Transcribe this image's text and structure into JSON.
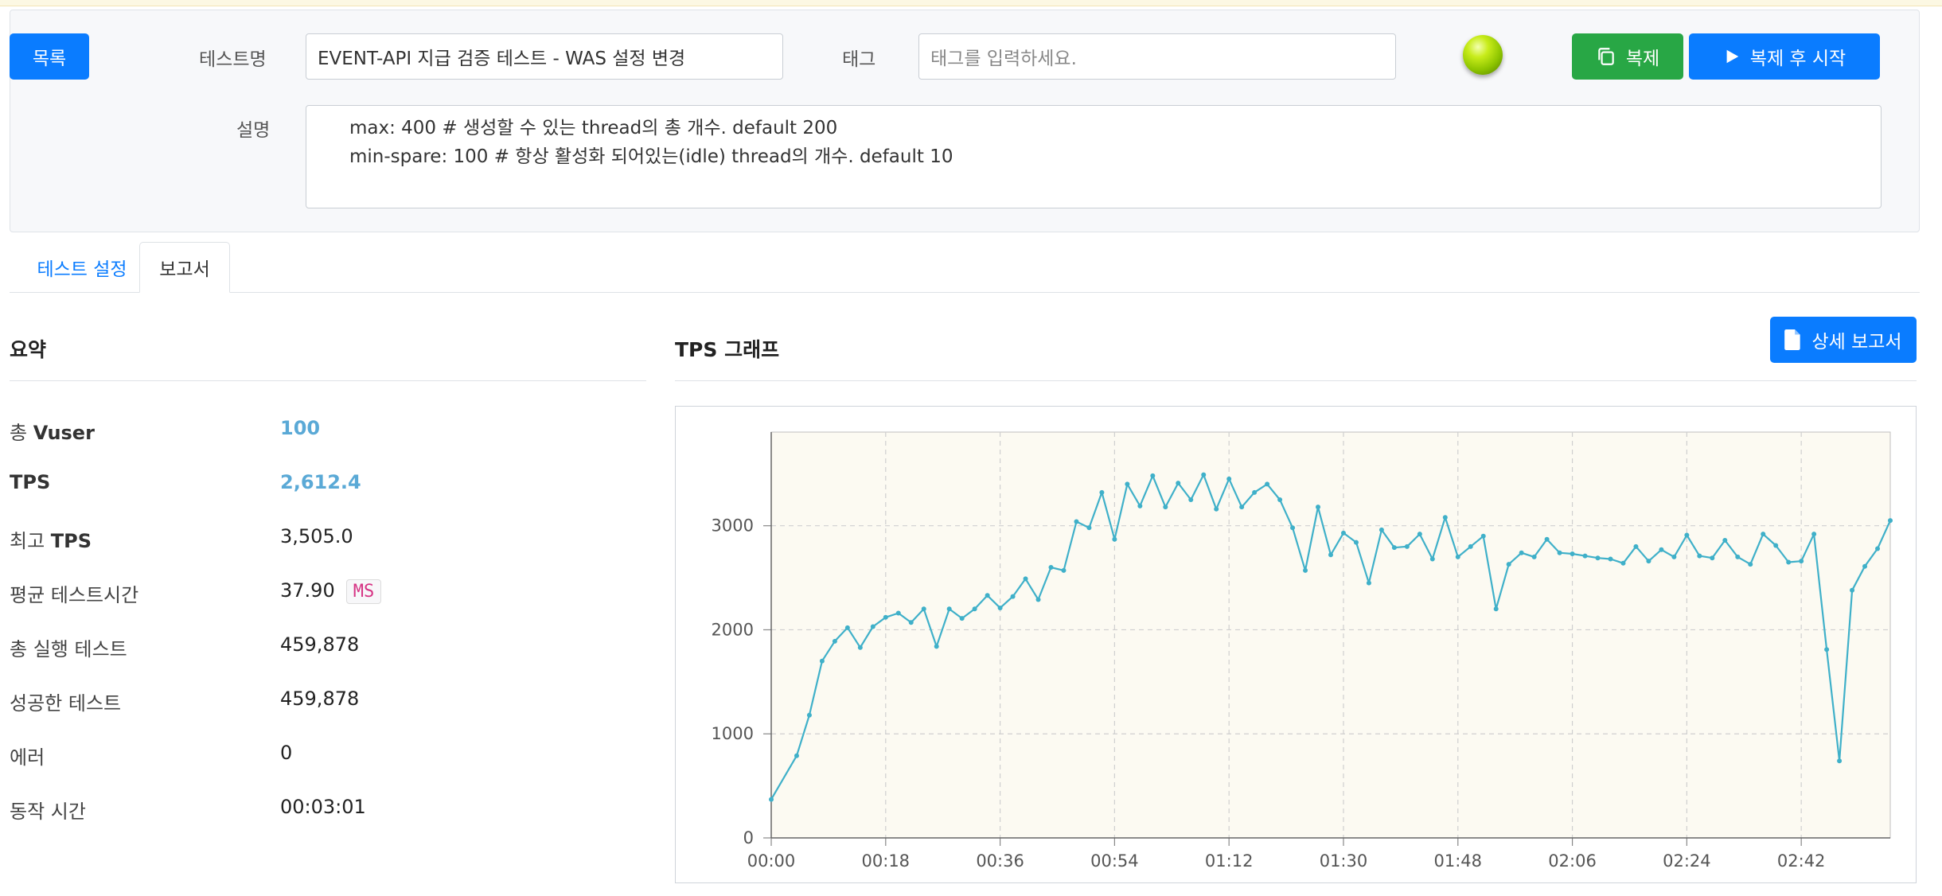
{
  "header": {
    "list_button": "목록",
    "test_name_label": "테스트명",
    "test_name_value": "EVENT-API 지급 검증 테스트 - WAS 설정 변경",
    "tag_label": "태그",
    "tag_placeholder": "태그를 입력하세요.",
    "copy_button": "복제",
    "copy_start_button": "복제 후 시작",
    "description_label": "설명",
    "description_lines": [
      "max: 400 # 생성할 수 있는 thread의 총 개수. default 200",
      "min-spare: 100 # 항상 활성화 되어있는(idle) thread의 개수. default 10"
    ],
    "status_color": "#a4d80a"
  },
  "tabs": [
    {
      "label": "테스트 설정",
      "active": false
    },
    {
      "label": "보고서",
      "active": true
    }
  ],
  "summary": {
    "title": "요약",
    "rows": [
      {
        "label_plain": "총 ",
        "label_bold": "Vuser",
        "value": "100",
        "accent": true
      },
      {
        "label_plain": "",
        "label_bold": "TPS",
        "value": "2,612.4",
        "accent": true
      },
      {
        "label_plain": "최고 ",
        "label_bold": "TPS",
        "value": "3,505.0",
        "accent": false
      },
      {
        "label_plain": "평균 테스트시간",
        "label_bold": "",
        "value": "37.90",
        "unit": "MS",
        "accent": false
      },
      {
        "label_plain": "총 실행 테스트",
        "label_bold": "",
        "value": "459,878",
        "accent": false
      },
      {
        "label_plain": "성공한 테스트",
        "label_bold": "",
        "value": "459,878",
        "accent": false
      },
      {
        "label_plain": "에러",
        "label_bold": "",
        "value": "0",
        "accent": false
      },
      {
        "label_plain": "동작 시간",
        "label_bold": "",
        "value": "00:03:01",
        "accent": false
      }
    ]
  },
  "graph": {
    "title": "TPS 그래프",
    "detail_report_button": "상세 보고서"
  },
  "colors": {
    "primary": "#0a7cff",
    "success": "#28a745",
    "accent_value": "#5aa9d6",
    "series_line": "#3fb0c9",
    "plot_background": "#fcfaf2"
  },
  "chart_data": {
    "type": "line",
    "title": "",
    "xlabel": "",
    "ylabel": "",
    "x_unit": "seconds",
    "xlim": [
      0,
      176
    ],
    "ylim": [
      0,
      3900
    ],
    "x_tick_labels": [
      "00:00",
      "00:18",
      "00:36",
      "00:54",
      "01:12",
      "01:30",
      "01:48",
      "02:06",
      "02:24",
      "02:42"
    ],
    "x_tick_seconds": [
      0,
      18,
      36,
      54,
      72,
      90,
      108,
      126,
      144,
      162
    ],
    "y_ticks": [
      0,
      1000,
      2000,
      3000
    ],
    "grid": true,
    "series": [
      {
        "x": [
          0,
          4,
          6,
          8,
          10,
          12,
          14,
          16,
          18,
          20,
          22,
          24,
          26,
          28,
          30,
          32,
          34,
          36,
          38,
          40,
          42,
          44,
          46,
          48,
          50,
          52,
          54,
          56,
          58,
          60,
          62,
          64,
          66,
          68,
          70,
          72,
          74,
          76,
          78,
          80,
          82,
          84,
          86,
          88,
          90,
          92,
          94,
          96,
          98,
          100,
          102,
          104,
          106,
          108,
          110,
          112,
          114,
          116,
          118,
          120,
          122,
          124,
          126,
          128,
          130,
          132,
          134,
          136,
          138,
          140,
          142,
          144,
          146,
          148,
          150,
          152,
          154,
          156,
          158,
          160,
          162,
          164,
          166,
          168,
          170,
          172,
          174,
          176
        ],
        "values": [
          370,
          790,
          1180,
          1700,
          1890,
          2020,
          1830,
          2030,
          2120,
          2160,
          2070,
          2200,
          1840,
          2200,
          2110,
          2200,
          2330,
          2210,
          2320,
          2490,
          2290,
          2600,
          2570,
          3040,
          2980,
          3320,
          2870,
          3400,
          3190,
          3480,
          3180,
          3410,
          3250,
          3490,
          3160,
          3450,
          3180,
          3320,
          3400,
          3250,
          2980,
          2570,
          3180,
          2720,
          2930,
          2840,
          2450,
          2960,
          2790,
          2800,
          2920,
          2680,
          3080,
          2700,
          2800,
          2900,
          2200,
          2630,
          2740,
          2700,
          2870,
          2740,
          2730,
          2710,
          2690,
          2680,
          2640,
          2800,
          2660,
          2770,
          2700,
          2910,
          2710,
          2690,
          2860,
          2700,
          2630,
          2920,
          2810,
          2650,
          2660,
          2920,
          1810,
          740,
          2380,
          2610,
          2780,
          3050
        ]
      }
    ]
  }
}
